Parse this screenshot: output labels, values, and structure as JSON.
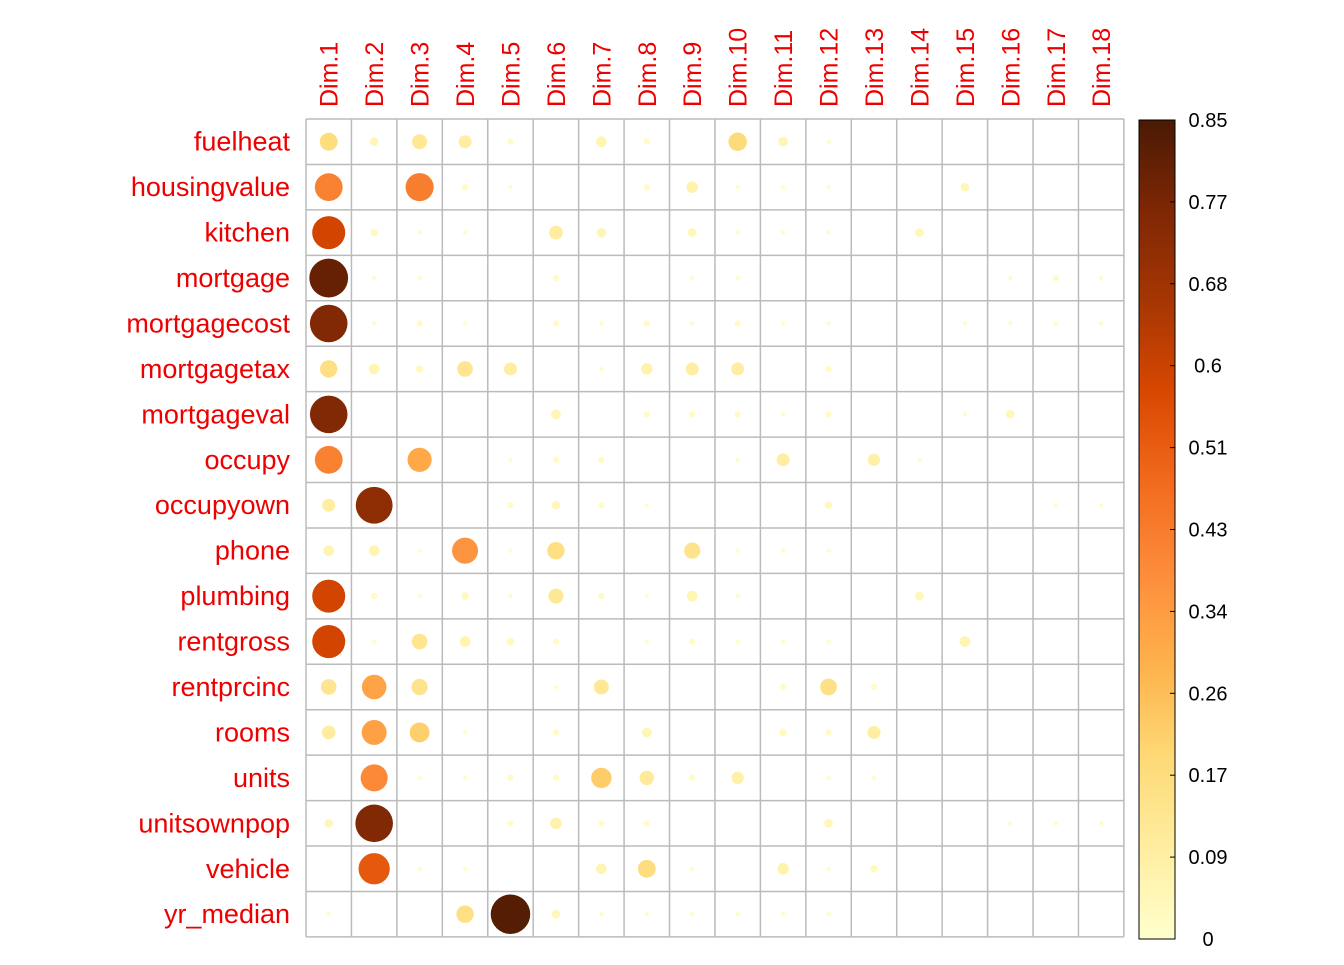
{
  "chart_data": {
    "type": "heatmap",
    "style": "correlation-circle",
    "columns": [
      "Dim.1",
      "Dim.2",
      "Dim.3",
      "Dim.4",
      "Dim.5",
      "Dim.6",
      "Dim.7",
      "Dim.8",
      "Dim.9",
      "Dim.10",
      "Dim.11",
      "Dim.12",
      "Dim.13",
      "Dim.14",
      "Dim.15",
      "Dim.16",
      "Dim.17",
      "Dim.18"
    ],
    "rows": [
      "fuelheat",
      "housingvalue",
      "kitchen",
      "mortgage",
      "mortgagecost",
      "mortgagetax",
      "mortgageval",
      "occupy",
      "occupyown",
      "phone",
      "plumbing",
      "rentgross",
      "rentprcinc",
      "rooms",
      "units",
      "unitsownpop",
      "vehicle",
      "yr_median"
    ],
    "values": [
      [
        0.17,
        0.04,
        0.12,
        0.09,
        0.02,
        0.0,
        0.06,
        0.02,
        0.0,
        0.18,
        0.05,
        0.01,
        0.0,
        0.0,
        0.0,
        0.0,
        0.0,
        0.0
      ],
      [
        0.41,
        0.0,
        0.42,
        0.02,
        0.01,
        0.0,
        0.0,
        0.02,
        0.07,
        0.01,
        0.01,
        0.01,
        0.0,
        0.0,
        0.04,
        0.0,
        0.0,
        0.0
      ],
      [
        0.58,
        0.03,
        0.01,
        0.01,
        0.0,
        0.1,
        0.05,
        0.0,
        0.04,
        0.01,
        0.01,
        0.01,
        0.0,
        0.04,
        0.0,
        0.0,
        0.0,
        0.0
      ],
      [
        0.8,
        0.01,
        0.01,
        0.0,
        0.0,
        0.02,
        0.0,
        0.0,
        0.01,
        0.01,
        0.0,
        0.0,
        0.0,
        0.0,
        0.0,
        0.01,
        0.02,
        0.01
      ],
      [
        0.75,
        0.01,
        0.02,
        0.01,
        0.0,
        0.02,
        0.01,
        0.02,
        0.01,
        0.02,
        0.01,
        0.01,
        0.0,
        0.0,
        0.01,
        0.01,
        0.01,
        0.01
      ],
      [
        0.16,
        0.06,
        0.03,
        0.13,
        0.09,
        0.0,
        0.01,
        0.07,
        0.09,
        0.09,
        0.0,
        0.02,
        0.0,
        0.0,
        0.0,
        0.0,
        0.0,
        0.0
      ],
      [
        0.75,
        0.0,
        0.0,
        0.0,
        0.0,
        0.05,
        0.0,
        0.02,
        0.02,
        0.02,
        0.01,
        0.02,
        0.0,
        0.0,
        0.01,
        0.04,
        0.0,
        0.0
      ],
      [
        0.41,
        0.0,
        0.31,
        0.0,
        0.01,
        0.02,
        0.02,
        0.0,
        0.0,
        0.01,
        0.09,
        0.0,
        0.08,
        0.01,
        0.0,
        0.0,
        0.0,
        0.0
      ],
      [
        0.09,
        0.72,
        0.0,
        0.0,
        0.02,
        0.04,
        0.02,
        0.01,
        0.0,
        0.0,
        0.0,
        0.03,
        0.0,
        0.0,
        0.0,
        0.0,
        0.01,
        0.01
      ],
      [
        0.06,
        0.06,
        0.01,
        0.36,
        0.01,
        0.16,
        0.0,
        0.0,
        0.14,
        0.01,
        0.01,
        0.01,
        0.0,
        0.0,
        0.0,
        0.0,
        0.0,
        0.0
      ],
      [
        0.58,
        0.02,
        0.01,
        0.03,
        0.01,
        0.12,
        0.02,
        0.01,
        0.06,
        0.01,
        0.0,
        0.0,
        0.0,
        0.04,
        0.0,
        0.0,
        0.0,
        0.0
      ],
      [
        0.58,
        0.01,
        0.13,
        0.06,
        0.03,
        0.02,
        0.0,
        0.01,
        0.02,
        0.01,
        0.01,
        0.01,
        0.0,
        0.0,
        0.06,
        0.0,
        0.0,
        0.0
      ],
      [
        0.13,
        0.32,
        0.14,
        0.0,
        0.0,
        0.01,
        0.12,
        0.0,
        0.0,
        0.0,
        0.02,
        0.15,
        0.02,
        0.0,
        0.0,
        0.0,
        0.0,
        0.0
      ],
      [
        0.1,
        0.33,
        0.21,
        0.01,
        0.0,
        0.02,
        0.0,
        0.05,
        0.0,
        0.0,
        0.03,
        0.02,
        0.09,
        0.0,
        0.0,
        0.0,
        0.0,
        0.0
      ],
      [
        0.0,
        0.39,
        0.01,
        0.01,
        0.02,
        0.02,
        0.22,
        0.11,
        0.02,
        0.08,
        0.0,
        0.01,
        0.01,
        0.0,
        0.0,
        0.0,
        0.0,
        0.0
      ],
      [
        0.04,
        0.75,
        0.0,
        0.0,
        0.02,
        0.07,
        0.02,
        0.02,
        0.0,
        0.0,
        0.0,
        0.04,
        0.0,
        0.0,
        0.0,
        0.01,
        0.01,
        0.01
      ],
      [
        0.0,
        0.52,
        0.01,
        0.01,
        0.0,
        0.0,
        0.06,
        0.17,
        0.01,
        0.0,
        0.07,
        0.01,
        0.03,
        0.0,
        0.0,
        0.0,
        0.0,
        0.0
      ],
      [
        0.01,
        0.0,
        0.0,
        0.16,
        0.83,
        0.04,
        0.01,
        0.01,
        0.01,
        0.01,
        0.01,
        0.01,
        0.0,
        0.0,
        0.0,
        0.0,
        0.0,
        0.0
      ]
    ],
    "color_scale": {
      "min": 0,
      "max": 0.85,
      "ticks": [
        "0.85",
        "0.77",
        "0.68",
        "0.6",
        "0.51",
        "0.43",
        "0.34",
        "0.26",
        "0.17",
        "0.09",
        "0"
      ],
      "stops": [
        "#ffffcc",
        "#ffeda0",
        "#fed976",
        "#feb24c",
        "#fd8d3c",
        "#f26b1e",
        "#d94801",
        "#a63603",
        "#7f2704",
        "#4a1a04"
      ]
    },
    "label_color": "#ee0000",
    "grid_color": "#bbbbbb",
    "legend": "right"
  }
}
